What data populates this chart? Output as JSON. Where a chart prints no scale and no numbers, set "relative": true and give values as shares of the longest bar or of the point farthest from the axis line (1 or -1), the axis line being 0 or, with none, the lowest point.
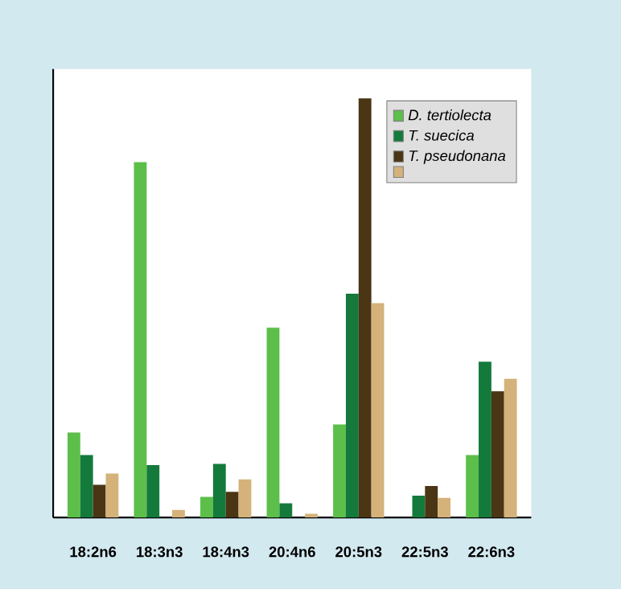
{
  "chart_data": {
    "type": "bar",
    "relative": true,
    "legend": "top right",
    "categories": [
      "18:2n6",
      "18:3n3",
      "18:4n3",
      "20:4n6",
      "20:5n3",
      "22:5n3",
      "22:6n3"
    ],
    "series": [
      {
        "name": "D. tertiolecta",
        "color": "#5cbf4a",
        "values": [
          0.203,
          0.848,
          0.049,
          0.453,
          0.222,
          null,
          0.149
        ]
      },
      {
        "name": "T. suecica",
        "color": "#147a3c",
        "values": [
          0.149,
          0.125,
          0.128,
          0.034,
          0.534,
          0.052,
          0.372
        ]
      },
      {
        "name": "T. pseudonana",
        "color": "#4a3514",
        "values": [
          0.078,
          null,
          0.061,
          null,
          1,
          0.075,
          0.301
        ]
      },
      {
        "color": "#d4b27a",
        "values": [
          0.105,
          0.018,
          0.091,
          0.009,
          0.512,
          0.047,
          0.331
        ]
      }
    ]
  }
}
